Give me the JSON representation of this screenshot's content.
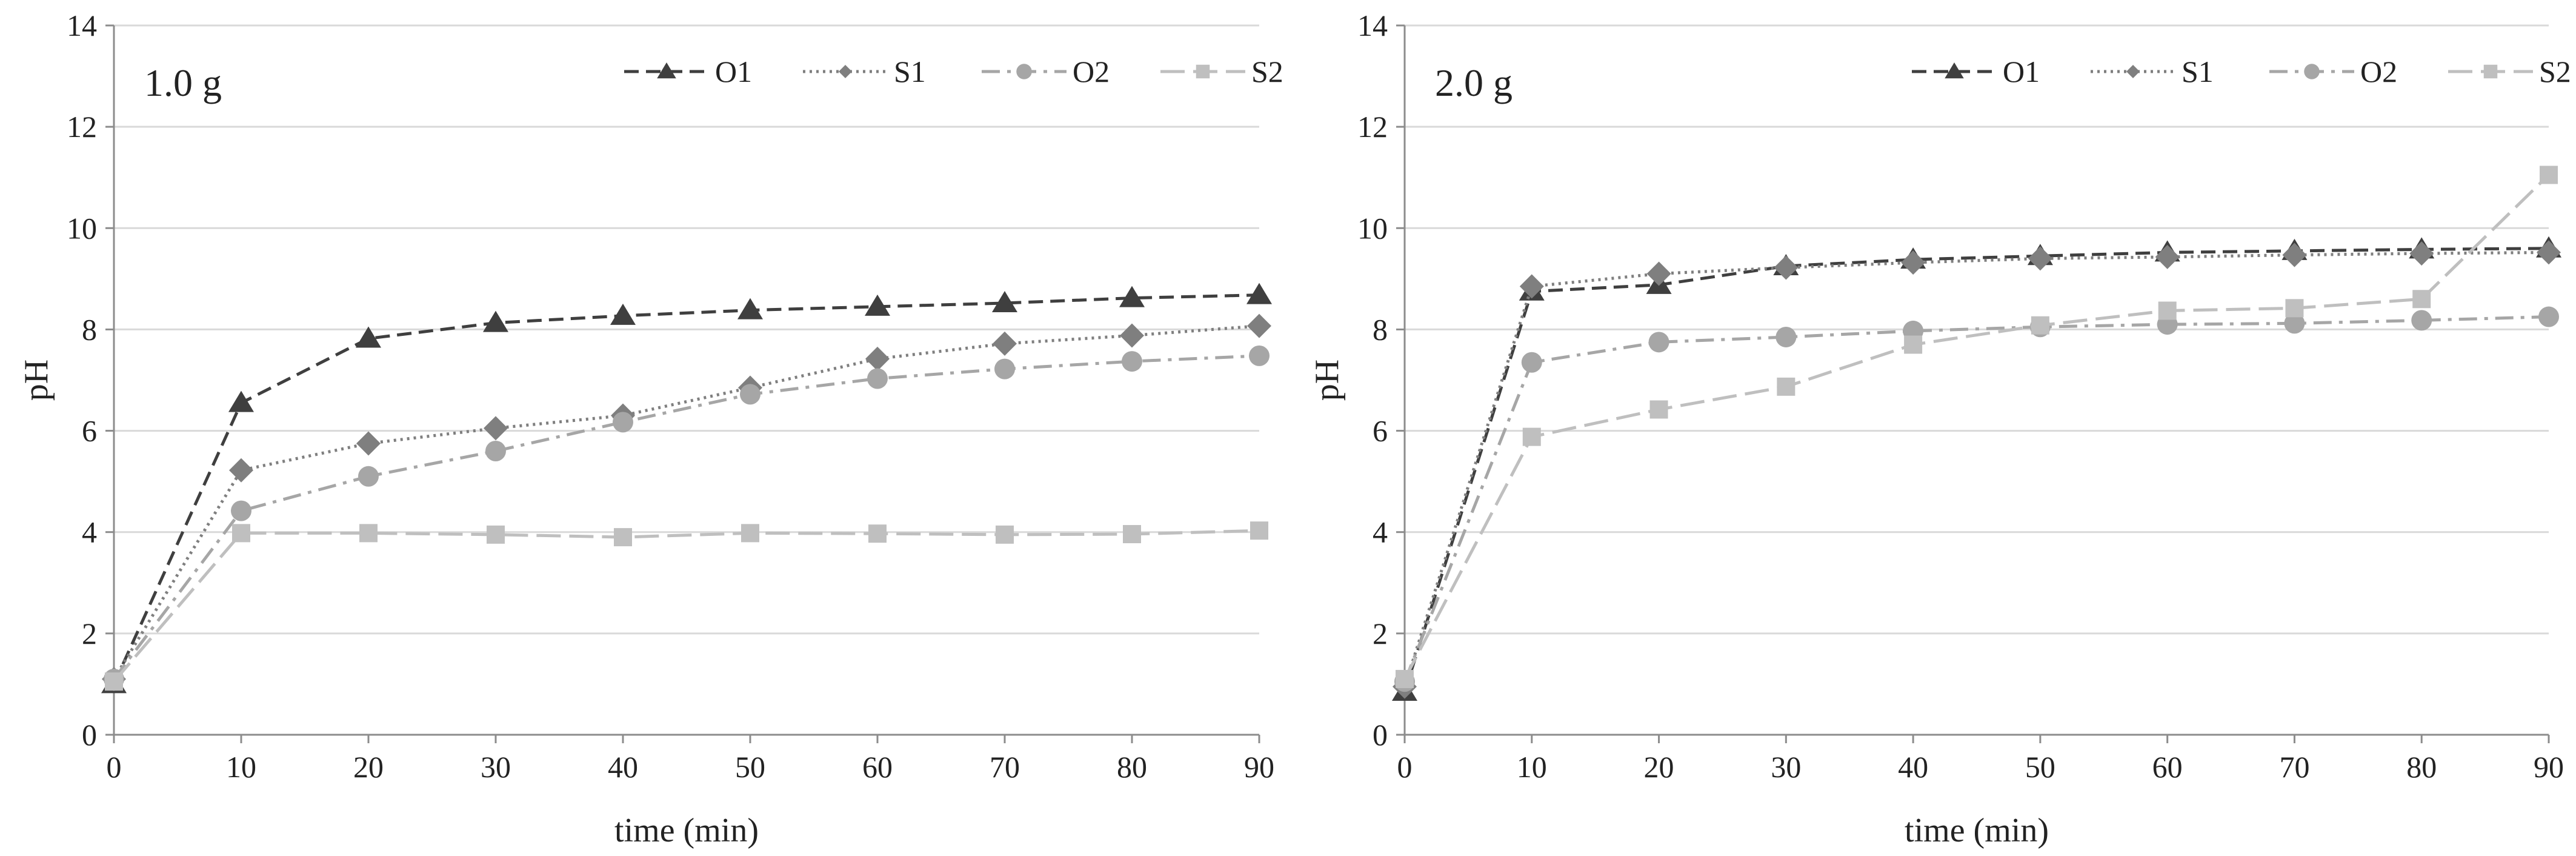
{
  "chart_data": [
    {
      "type": "line",
      "panel_label": "1.0 g",
      "xlabel": "time (min)",
      "ylabel": "pH",
      "x": [
        0,
        10,
        20,
        30,
        40,
        50,
        60,
        70,
        80,
        90
      ],
      "xticks": [
        0,
        10,
        20,
        30,
        40,
        50,
        60,
        70,
        80,
        90
      ],
      "yticks": [
        0,
        2,
        4,
        6,
        8,
        10,
        12,
        14
      ],
      "xlim": [
        0,
        90
      ],
      "ylim": [
        0,
        14
      ],
      "grid": "horizontal",
      "legend": "top-right",
      "series": [
        {
          "name": "O1",
          "values": [
            1.0,
            6.55,
            7.82,
            8.13,
            8.27,
            8.38,
            8.45,
            8.52,
            8.62,
            8.68
          ]
        },
        {
          "name": "S1",
          "values": [
            1.1,
            5.22,
            5.75,
            6.05,
            6.3,
            6.85,
            7.42,
            7.72,
            7.88,
            8.07
          ]
        },
        {
          "name": "O2",
          "values": [
            1.1,
            4.42,
            5.1,
            5.6,
            6.17,
            6.72,
            7.03,
            7.22,
            7.37,
            7.48
          ]
        },
        {
          "name": "S2",
          "values": [
            1.05,
            3.98,
            3.98,
            3.95,
            3.9,
            3.98,
            3.97,
            3.95,
            3.96,
            4.03
          ]
        }
      ]
    },
    {
      "type": "line",
      "panel_label": "2.0 g",
      "xlabel": "time (min)",
      "ylabel": "pH",
      "x": [
        0,
        10,
        20,
        30,
        40,
        50,
        60,
        70,
        80,
        90
      ],
      "xticks": [
        0,
        10,
        20,
        30,
        40,
        50,
        60,
        70,
        80,
        90
      ],
      "yticks": [
        0,
        2,
        4,
        6,
        8,
        10,
        12,
        14
      ],
      "xlim": [
        0,
        90
      ],
      "ylim": [
        0,
        14
      ],
      "grid": "horizontal",
      "legend": "top-right",
      "series": [
        {
          "name": "O1",
          "values": [
            0.85,
            8.75,
            8.88,
            9.25,
            9.38,
            9.45,
            9.52,
            9.55,
            9.58,
            9.6
          ]
        },
        {
          "name": "S1",
          "values": [
            0.95,
            8.85,
            9.1,
            9.22,
            9.32,
            9.4,
            9.43,
            9.47,
            9.5,
            9.52
          ]
        },
        {
          "name": "O2",
          "values": [
            1.05,
            7.35,
            7.75,
            7.85,
            7.97,
            8.05,
            8.1,
            8.12,
            8.18,
            8.25
          ]
        },
        {
          "name": "S2",
          "values": [
            1.1,
            5.88,
            6.42,
            6.87,
            7.7,
            8.08,
            8.37,
            8.42,
            8.6,
            11.05
          ]
        }
      ]
    }
  ],
  "styles": {
    "O1": {
      "color": "#3f3f3f",
      "dash": "24 12",
      "marker": "triangle"
    },
    "S1": {
      "color": "#7f7f7f",
      "dash": "4 7",
      "marker": "diamond"
    },
    "O2": {
      "color": "#a6a6a6",
      "dash": "30 12 6 12",
      "marker": "circle"
    },
    "S2": {
      "color": "#bfbfbf",
      "dash": "40 14",
      "marker": "square"
    },
    "axis_color": "#8c8c8c",
    "grid_color": "#d9d9d9",
    "text_color": "#222222"
  }
}
